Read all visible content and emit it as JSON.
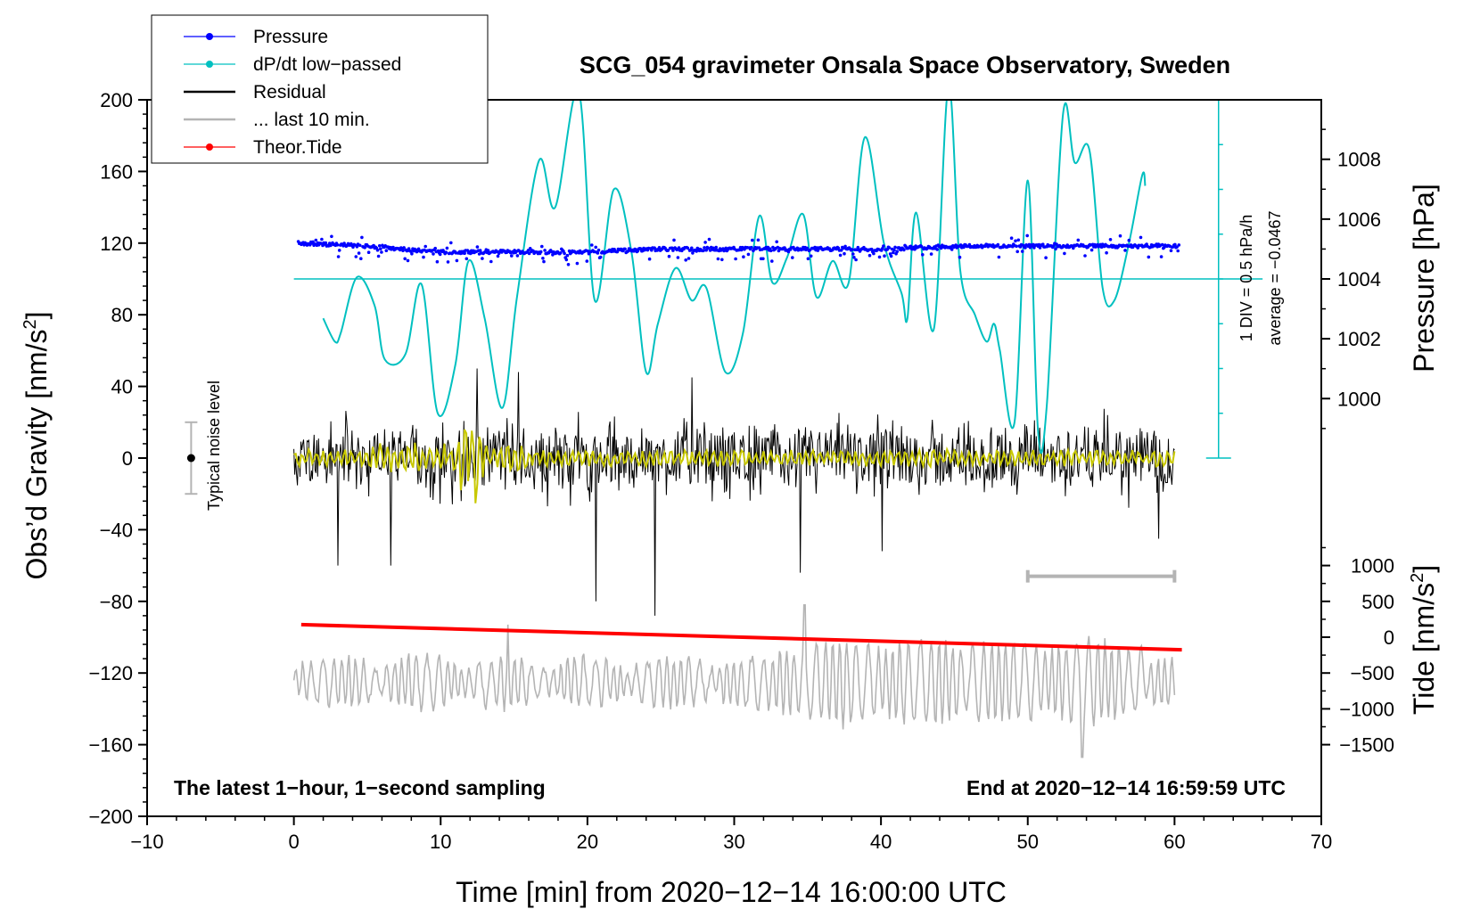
{
  "chart_data": {
    "type": "line",
    "title": "SCG_054 gravimeter Onsala Space Observatory, Sweden",
    "xlabel": "Time [min] from 2020−12−14 16:00:00 UTC",
    "ylabel_left": "Obs’d Gravity [nm/s",
    "ylabel_left_sup": "2",
    "ylabel_left_close": "]",
    "ylabel_pressure": "Pressure [hPa]",
    "ylabel_tide": "Tide [nm/s",
    "ylabel_tide_sup": "2",
    "ylabel_tide_close": "]",
    "xlim": [
      -10,
      70
    ],
    "ylim": [
      -200,
      200
    ],
    "xticks": [
      "−10",
      "0",
      "10",
      "20",
      "30",
      "40",
      "50",
      "60",
      "70"
    ],
    "yticks_left": [
      "200",
      "160",
      "120",
      "80",
      "40",
      "0",
      "−40",
      "−80",
      "−120",
      "−160",
      "−200"
    ],
    "pressure_ticks": [
      "1008",
      "1006",
      "1004",
      "1002",
      "1000"
    ],
    "pressure_axis": {
      "ref_hpa": 1004,
      "ref_gravity": 100,
      "nm_per_hpa": 16.7
    },
    "tide_ticks": [
      "1000",
      "500",
      "0",
      "−500",
      "−1000",
      "−1500"
    ],
    "tide_axis": {
      "ref_tide": 0,
      "ref_gravity": -100,
      "nm_per_tide_unit": 0.04
    },
    "note_left": "The latest 1−hour, 1−second sampling",
    "note_right": "End at 2020−12−14 16:59:59 UTC",
    "noise_label": "Typical noise level",
    "noise_bar": {
      "x": -7,
      "low": -20,
      "high": 20,
      "center": 0
    },
    "dpdt_scale_label": "1 DIV = 0.5 hPa/h",
    "dpdt_average_label": "average = −0.0467",
    "dpdt_axis": {
      "x": 63,
      "baseline_gravity": 100,
      "bottom_gravity": 0,
      "top_gravity": 200,
      "divisions": 8
    },
    "last10_bar": {
      "x_start": 50,
      "x_end": 60,
      "gravity": -66
    },
    "legend": [
      {
        "label": "Pressure",
        "color": "#0000ff",
        "marker": true
      },
      {
        "label": "dP/dt low−passed",
        "color": "#00c0c0",
        "marker": true
      },
      {
        "label": "Residual",
        "color": "#000000",
        "marker": false
      },
      {
        "label": "... last 10 min.",
        "color": "#b4b4b4",
        "marker": false
      },
      {
        "label": "Theor.Tide",
        "color": "#ff0000",
        "marker": true
      }
    ],
    "series": [
      {
        "name": "Pressure",
        "color": "#0000ff",
        "unit": "hPa",
        "x": [
          0.3,
          5,
          10,
          15,
          20,
          25,
          30,
          35,
          40,
          45,
          50,
          55,
          60.3
        ],
        "values": [
          1005.2,
          1005.1,
          1004.9,
          1004.9,
          1004.9,
          1005.0,
          1005.0,
          1005.0,
          1005.0,
          1005.1,
          1005.1,
          1005.1,
          1005.1
        ],
        "scatter": 0.12
      },
      {
        "name": "dP/dt low−passed",
        "color": "#00c0c0",
        "unit": "gravity-axis",
        "x": [
          2,
          2.8,
          3.2,
          4.3,
          5.5,
          6.2,
          7.6,
          8.7,
          9.8,
          11.0,
          11.9,
          13.0,
          14.2,
          15.2,
          16.7,
          17.8,
          19.4,
          20.5,
          21.8,
          23.0,
          24.0,
          24.8,
          26.0,
          27.1,
          28.1,
          29.4,
          30.6,
          31.7,
          32.6,
          33.6,
          34.7,
          35.6,
          36.7,
          37.8,
          38.9,
          40.2,
          41.4,
          41.8,
          42.4,
          43.6,
          44.6,
          45.4,
          46.4,
          47.2,
          47.7,
          48.1,
          49.1,
          50.0,
          50.7,
          51.3,
          52.4,
          53.2,
          54.2,
          55.1,
          55.9,
          56.9,
          57.8,
          58.0
        ],
        "values": [
          78,
          65,
          70,
          101,
          85,
          55,
          58,
          97,
          25,
          52,
          110,
          78,
          28,
          90,
          166,
          140,
          205,
          88,
          150,
          115,
          48,
          75,
          106,
          88,
          95,
          48,
          70,
          135,
          98,
          112,
          136,
          90,
          110,
          98,
          179,
          120,
          92,
          78,
          137,
          72,
          208,
          105,
          80,
          65,
          75,
          60,
          20,
          155,
          15,
          30,
          192,
          165,
          172,
          95,
          88,
          120,
          158,
          152
        ]
      },
      {
        "name": "Residual",
        "color": "#000000",
        "x_range": [
          0,
          60
        ],
        "samples": 1000,
        "amplitude": 12,
        "spikes": [
          {
            "x": 3.0,
            "value": -60
          },
          {
            "x": 6.6,
            "value": -60
          },
          {
            "x": 12.5,
            "value": 50
          },
          {
            "x": 20.6,
            "value": -80
          },
          {
            "x": 24.6,
            "value": -88
          },
          {
            "x": 34.5,
            "value": -64
          },
          {
            "x": 15.3,
            "value": 48
          },
          {
            "x": 27.1,
            "value": 45
          },
          {
            "x": 40.1,
            "value": -52
          },
          {
            "x": 58.9,
            "value": -45
          }
        ]
      },
      {
        "name": "Residual smoothed",
        "color": "#c8c800",
        "x_range": [
          0,
          60
        ],
        "samples": 480,
        "amplitude": 5,
        "burst": {
          "x_start": 10.5,
          "x_end": 13.5,
          "amplitude": 30
        }
      },
      {
        "name": "... last 10 min.",
        "color": "#b4b4b4",
        "x_range": [
          0,
          60
        ],
        "center_gravity": -125,
        "amplitude": 12,
        "spikes": [
          {
            "x": 14.6,
            "value": -93
          },
          {
            "x": 34.8,
            "value": -82
          },
          {
            "x": 53.7,
            "value": -167
          }
        ]
      },
      {
        "name": "Theor.Tide",
        "color": "#ff0000",
        "unit": "gravity-axis",
        "x": [
          0.5,
          60.5
        ],
        "values": [
          -93,
          -107
        ]
      }
    ]
  }
}
